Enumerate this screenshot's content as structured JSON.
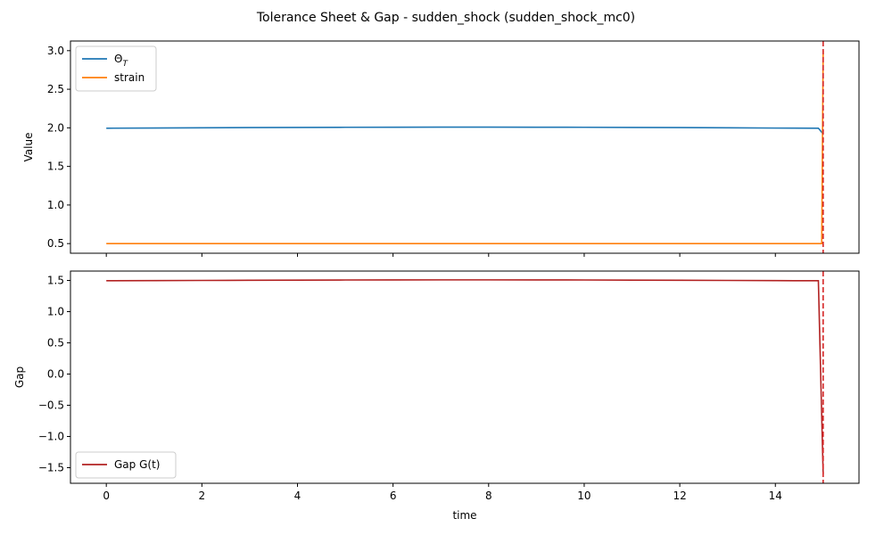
{
  "figure": {
    "title": "Tolerance Sheet & Gap - sudden_shock (sudden_shock_mc0)"
  },
  "chart_data": [
    {
      "type": "line",
      "title": "",
      "xlabel": "",
      "ylabel": "Value",
      "xlim": [
        -0.75,
        15.75
      ],
      "ylim": [
        0.375,
        3.125
      ],
      "xticks": [
        0,
        2,
        4,
        6,
        8,
        10,
        12,
        14
      ],
      "xtick_labels_visible": false,
      "yticks": [
        0.5,
        1.0,
        1.5,
        2.0,
        2.5,
        3.0
      ],
      "ytick_labels": [
        "0.5",
        "1.0",
        "1.5",
        "2.0",
        "2.5",
        "3.0"
      ],
      "grid": false,
      "legend_position": "upper-left",
      "series": [
        {
          "name": "Θ_T",
          "legend_main": "Θ",
          "legend_sub": "T",
          "color": "#1f77b4",
          "x": [
            0,
            1,
            2,
            3,
            4,
            5,
            6,
            7,
            8,
            9,
            10,
            11,
            12,
            13,
            14,
            14.9,
            15.0
          ],
          "y": [
            1.995,
            1.998,
            2.0,
            2.003,
            2.005,
            2.007,
            2.008,
            2.009,
            2.009,
            2.008,
            2.007,
            2.005,
            2.003,
            2.0,
            1.997,
            1.995,
            1.92
          ]
        },
        {
          "name": "strain",
          "color": "#ff7f0e",
          "x": [
            0,
            14.9,
            14.97,
            15.0
          ],
          "y": [
            0.5,
            0.5,
            0.5,
            3.0
          ]
        }
      ],
      "vlines": [
        {
          "x": 15.0,
          "color": "#d62728",
          "style": "dashed"
        }
      ]
    },
    {
      "type": "line",
      "title": "",
      "xlabel": "time",
      "ylabel": "Gap",
      "xlim": [
        -0.75,
        15.75
      ],
      "ylim": [
        -1.75,
        1.65
      ],
      "xticks": [
        0,
        2,
        4,
        6,
        8,
        10,
        12,
        14
      ],
      "xtick_labels": [
        "0",
        "2",
        "4",
        "6",
        "8",
        "10",
        "12",
        "14"
      ],
      "yticks": [
        -1.5,
        -1.0,
        -0.5,
        0.0,
        0.5,
        1.0,
        1.5
      ],
      "ytick_labels": [
        "−1.5",
        "−1.0",
        "−0.5",
        "0.0",
        "0.5",
        "1.0",
        "1.5"
      ],
      "grid": false,
      "legend_position": "lower-left",
      "series": [
        {
          "name": "Gap G(t)",
          "color": "#b22222",
          "x": [
            0,
            1,
            2,
            3,
            4,
            5,
            6,
            7,
            8,
            9,
            10,
            11,
            12,
            13,
            14,
            14.9,
            15.0
          ],
          "y": [
            1.495,
            1.498,
            1.5,
            1.503,
            1.505,
            1.507,
            1.508,
            1.509,
            1.509,
            1.508,
            1.507,
            1.505,
            1.503,
            1.5,
            1.497,
            1.495,
            -1.6
          ]
        }
      ],
      "vlines": [
        {
          "x": 15.0,
          "color": "#d62728",
          "style": "dashed"
        }
      ]
    }
  ]
}
